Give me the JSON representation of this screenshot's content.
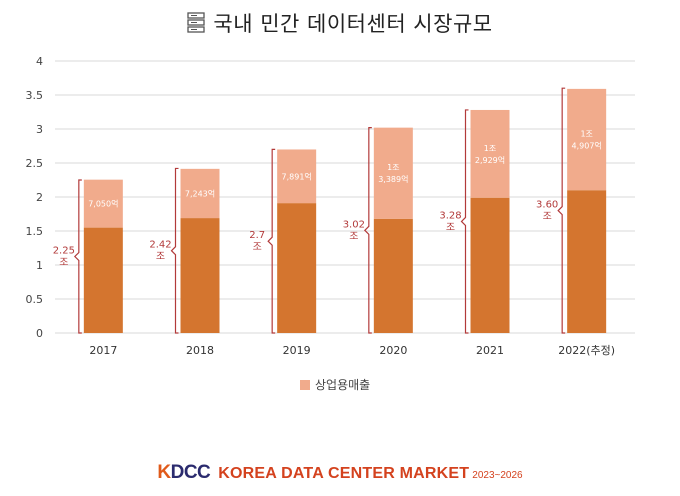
{
  "title": "국내 민간 데이터센터 시장규모",
  "legend_label": "상업용매출",
  "footer": {
    "logo_k": "K",
    "logo_rest": "DCC",
    "market": "KOREA DATA CENTER MARKET",
    "years": "2023~2026"
  },
  "colors": {
    "dark": "#d4752f",
    "light": "#f1ab8c",
    "grid": "#d9d9d9",
    "bracket": "#b23a3a"
  },
  "chart_data": {
    "type": "bar",
    "stacked": true,
    "categories": [
      "2017",
      "2018",
      "2019",
      "2020",
      "2021",
      "2022(추정)"
    ],
    "series": [
      {
        "values": [
          1.55,
          1.69,
          1.91,
          1.68,
          1.99,
          2.1
        ]
      },
      {
        "name": "상업용매출",
        "values": [
          0.705,
          0.724,
          0.789,
          1.34,
          1.29,
          1.49
        ]
      }
    ],
    "segment_labels": [
      "7,050억",
      "7,243억",
      "7,891억",
      "1조\n3,389억",
      "1조\n2,929억",
      "1조\n4,907억"
    ],
    "total_labels": [
      "2.25\n조",
      "2.42\n조",
      "2.7\n조",
      "3.02\n조",
      "3.28\n조",
      "3.60\n조"
    ],
    "totals": [
      2.25,
      2.42,
      2.7,
      3.02,
      3.28,
      3.6
    ],
    "yticks": [
      "0",
      "0.5",
      "1",
      "1.5",
      "2",
      "2.5",
      "3",
      "3.5",
      "4"
    ],
    "ylim": [
      0,
      4
    ],
    "grid": true,
    "legend_position": "bottom"
  }
}
